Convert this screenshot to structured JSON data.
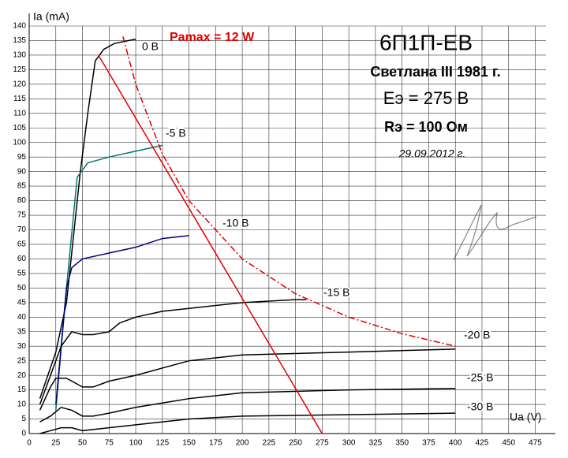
{
  "chart_data": {
    "type": "line",
    "y_label": "Ia (mA)",
    "x_label": "Ua (V)",
    "xlim": [
      0,
      485
    ],
    "ylim": [
      0,
      140
    ],
    "xticks": [
      0,
      25,
      50,
      75,
      100,
      125,
      150,
      175,
      200,
      225,
      250,
      275,
      300,
      325,
      350,
      375,
      400,
      425,
      450,
      475
    ],
    "yticks": [
      0,
      5,
      10,
      15,
      20,
      25,
      30,
      35,
      40,
      45,
      50,
      55,
      60,
      65,
      70,
      75,
      80,
      85,
      90,
      95,
      100,
      105,
      110,
      115,
      120,
      125,
      130,
      135,
      140
    ],
    "grid": true,
    "annotations": [
      "6П1П-ЕВ",
      "Светлана III 1981 г.",
      "Eэ = 275 В",
      "Rэ = 100 Ом",
      "29.09.2012 г."
    ],
    "series": [
      {
        "name": "0 В",
        "color": "#000000",
        "x": [
          10,
          25,
          35,
          48,
          55,
          62,
          70,
          80,
          100
        ],
        "values": [
          12,
          28,
          45,
          90,
          110,
          128,
          132,
          134,
          135.5
        ]
      },
      {
        "name": "-5 В",
        "color": "#007878",
        "x": [
          25,
          35,
          45,
          55,
          75,
          100,
          125
        ],
        "values": [
          8,
          50,
          88,
          93,
          95,
          97,
          99
        ]
      },
      {
        "name": "-10 В",
        "color": "#000080",
        "x": [
          25,
          35,
          40,
          50,
          75,
          100,
          125,
          150
        ],
        "values": [
          10,
          50,
          57,
          60,
          62,
          64,
          67,
          68
        ]
      },
      {
        "name": "-15 В",
        "color": "#000000",
        "x": [
          10,
          20,
          30,
          40,
          50,
          60,
          75,
          85,
          100,
          125,
          150,
          200,
          250,
          260
        ],
        "values": [
          10,
          20,
          30,
          35,
          34,
          34,
          35,
          38,
          40,
          42,
          43,
          45,
          46,
          46
        ]
      },
      {
        "name": "-20 В",
        "color": "#000000",
        "x": [
          10,
          20,
          25,
          35,
          40,
          50,
          60,
          75,
          100,
          150,
          200,
          300,
          400
        ],
        "values": [
          8,
          16,
          19,
          19,
          18,
          16,
          16,
          18,
          20,
          25,
          27,
          28,
          29
        ]
      },
      {
        "name": "-25 В",
        "color": "#000000",
        "x": [
          10,
          20,
          30,
          40,
          50,
          60,
          75,
          100,
          150,
          200,
          300,
          400
        ],
        "values": [
          4,
          6,
          9,
          8,
          6,
          6,
          7,
          9,
          12,
          14,
          15,
          15.5
        ]
      },
      {
        "name": "-30 В",
        "color": "#000000",
        "x": [
          10,
          20,
          30,
          40,
          50,
          75,
          100,
          150,
          200,
          300,
          400
        ],
        "values": [
          0,
          1,
          2,
          2,
          1,
          2,
          3,
          5,
          6,
          6.5,
          7
        ]
      }
    ],
    "load_line": {
      "color": "#e00000",
      "x": [
        65,
        275
      ],
      "values": [
        130,
        0
      ]
    },
    "pmax_curve": {
      "label": "Pamax = 12 W",
      "color": "#e00000",
      "dash": "dashdot",
      "x": [
        88,
        100,
        125,
        150,
        200,
        250,
        300,
        350,
        400
      ],
      "values": [
        136.4,
        120,
        96,
        80,
        60,
        48,
        40,
        34.3,
        30
      ]
    }
  }
}
